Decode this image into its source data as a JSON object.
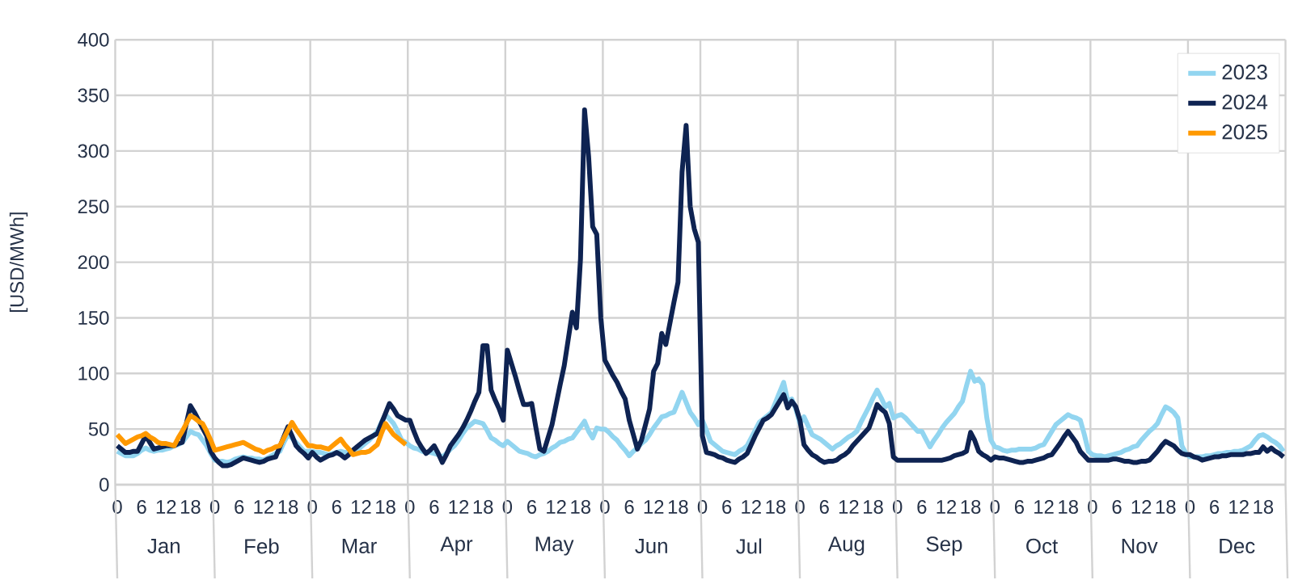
{
  "chart_data": {
    "type": "line",
    "ylabel": "[USD/MWh]",
    "ylim": [
      0,
      400
    ],
    "yticks": [
      0,
      50,
      100,
      150,
      200,
      250,
      300,
      350,
      400
    ],
    "categories": [
      "0",
      null,
      null,
      null,
      null,
      null,
      "6",
      null,
      null,
      null,
      null,
      null,
      "12",
      null,
      null,
      null,
      null,
      null,
      "18",
      null,
      null,
      null,
      null,
      null,
      "0",
      null,
      null,
      null,
      null,
      null,
      "6",
      null,
      null,
      null,
      null,
      null,
      "12",
      null,
      null,
      null,
      null,
      null,
      "18",
      null,
      null,
      null,
      null,
      null,
      "0",
      null,
      null,
      null,
      null,
      null,
      "6",
      null,
      null,
      null,
      null,
      null,
      "12",
      null,
      null,
      null,
      null,
      null,
      "18",
      null,
      null,
      null,
      null,
      null,
      "0",
      null,
      null,
      null,
      null,
      null,
      "6",
      null,
      null,
      null,
      null,
      null,
      "12",
      null,
      null,
      null,
      null,
      null,
      "18",
      null,
      null,
      null,
      null,
      null,
      "0",
      null,
      null,
      null,
      null,
      null,
      "6",
      null,
      null,
      null,
      null,
      null,
      "12",
      null,
      null,
      null,
      null,
      null,
      "18",
      null,
      null,
      null,
      null,
      null,
      "0",
      null,
      null,
      null,
      null,
      null,
      "6",
      null,
      null,
      null,
      null,
      null,
      "12",
      null,
      null,
      null,
      null,
      null,
      "18",
      null,
      null,
      null,
      null,
      null,
      "0",
      null,
      null,
      null,
      null,
      null,
      "6",
      null,
      null,
      null,
      null,
      null,
      "12",
      null,
      null,
      null,
      null,
      null,
      "18",
      null,
      null,
      null,
      null,
      null,
      "0",
      null,
      null,
      null,
      null,
      null,
      "6",
      null,
      null,
      null,
      null,
      null,
      "12",
      null,
      null,
      null,
      null,
      null,
      "18",
      null,
      null,
      null,
      null,
      null,
      "0",
      null,
      null,
      null,
      null,
      null,
      "6",
      null,
      null,
      null,
      null,
      null,
      "12",
      null,
      null,
      null,
      null,
      null,
      "18",
      null,
      null,
      null,
      null,
      null,
      "0",
      null,
      null,
      null,
      null,
      null,
      "6",
      null,
      null,
      null,
      null,
      null,
      "12",
      null,
      null,
      null,
      null,
      null,
      "18",
      null,
      null,
      null,
      null,
      null,
      "0",
      null,
      null,
      null,
      null,
      null,
      "6",
      null,
      null,
      null,
      null,
      null,
      "12",
      null,
      null,
      null,
      null,
      null,
      "18",
      null,
      null,
      null,
      null,
      null,
      "0",
      null,
      null,
      null,
      null,
      null,
      "6",
      null,
      null,
      null,
      null,
      null,
      "12",
      null,
      null,
      null,
      null,
      null,
      "18",
      null,
      null,
      null,
      null,
      null
    ],
    "annotations": [
      "Jan",
      "Feb",
      "Mar",
      "Apr",
      "May",
      "Jun",
      "Jul",
      "Aug",
      "Sep",
      "Oct",
      "Nov",
      "Dec"
    ],
    "grid": true,
    "legend": "top right",
    "marker": "none",
    "line_style": "solid",
    "series": [
      {
        "name": "2023",
        "color": "#92d5f0",
        "values": [
          30,
          28,
          26,
          26,
          26,
          28,
          31,
          33,
          31,
          30,
          31,
          31,
          32,
          33,
          35,
          36,
          38,
          43,
          48,
          46,
          45,
          40,
          35,
          28,
          22,
          21,
          21,
          20,
          21,
          23,
          24,
          25,
          24,
          24,
          23,
          23,
          22,
          24,
          26,
          28,
          30,
          38,
          45,
          42,
          38,
          34,
          30,
          30,
          30,
          29,
          29,
          28,
          27,
          28,
          29,
          30,
          29,
          29,
          28,
          31,
          34,
          37,
          40,
          44,
          48,
          56,
          63,
          59,
          55,
          48,
          40,
          38,
          35,
          33,
          32,
          30,
          29,
          29,
          28,
          27,
          25,
          28,
          32,
          35,
          40,
          46,
          51,
          54,
          57,
          56,
          55,
          49,
          42,
          40,
          37,
          35,
          39,
          36,
          33,
          30,
          29,
          28,
          26,
          25,
          27,
          28,
          30,
          33,
          35,
          38,
          39,
          41,
          42,
          47,
          52,
          57,
          48,
          42,
          51,
          50,
          50,
          47,
          43,
          40,
          35,
          31,
          26,
          30,
          33,
          37,
          40,
          45,
          51,
          56,
          61,
          62,
          64,
          65,
          74,
          83,
          74,
          65,
          60,
          54,
          58,
          49,
          39,
          36,
          33,
          30,
          29,
          28,
          27,
          30,
          32,
          35,
          42,
          49,
          56,
          59,
          62,
          65,
          74,
          83,
          92,
          75,
          77,
          68,
          55,
          61,
          53,
          45,
          43,
          41,
          38,
          35,
          32,
          35,
          37,
          40,
          43,
          45,
          48,
          56,
          63,
          70,
          78,
          85,
          78,
          70,
          73,
          60,
          62,
          63,
          60,
          56,
          52,
          48,
          48,
          41,
          34,
          40,
          45,
          51,
          56,
          60,
          64,
          70,
          75,
          89,
          102,
          93,
          95,
          90,
          60,
          40,
          34,
          33,
          31,
          30,
          31,
          31,
          32,
          32,
          32,
          32,
          33,
          35,
          36,
          42,
          48,
          54,
          57,
          60,
          63,
          61,
          60,
          58,
          45,
          30,
          27,
          26,
          26,
          25,
          26,
          27,
          28,
          29,
          31,
          32,
          34,
          35,
          40,
          44,
          48,
          51,
          55,
          63,
          70,
          68,
          65,
          60,
          35,
          28,
          25,
          25,
          25,
          25,
          26,
          26,
          27,
          28,
          28,
          29,
          29,
          30,
          30,
          31,
          33,
          35,
          40,
          44,
          45,
          43,
          40,
          38,
          35,
          30
        ]
      },
      {
        "name": "2024",
        "color": "#0e2352",
        "values": [
          35,
          32,
          29,
          29,
          30,
          30,
          37,
          44,
          38,
          32,
          33,
          34,
          35,
          35,
          35,
          37,
          38,
          55,
          71,
          65,
          58,
          51,
          44,
          30,
          24,
          20,
          17,
          17,
          18,
          20,
          22,
          24,
          23,
          22,
          21,
          20,
          21,
          23,
          24,
          25,
          34,
          43,
          52,
          44,
          35,
          31,
          28,
          24,
          29,
          25,
          22,
          24,
          26,
          27,
          29,
          27,
          24,
          27,
          31,
          34,
          37,
          40,
          42,
          44,
          46,
          55,
          64,
          73,
          68,
          62,
          60,
          58,
          58,
          48,
          39,
          33,
          28,
          31,
          35,
          28,
          20,
          27,
          35,
          40,
          45,
          51,
          58,
          66,
          75,
          83,
          125,
          125,
          85,
          76,
          68,
          58,
          121,
          109,
          97,
          84,
          72,
          72,
          73,
          52,
          32,
          30,
          42,
          54,
          72,
          90,
          107,
          131,
          155,
          141,
          203,
          337,
          295,
          232,
          225,
          150,
          112,
          105,
          98,
          92,
          84,
          77,
          58,
          45,
          32,
          40,
          54,
          68,
          102,
          109,
          136,
          126,
          145,
          164,
          182,
          281,
          323,
          250,
          230,
          218,
          44,
          29,
          28,
          27,
          25,
          24,
          22,
          21,
          20,
          23,
          25,
          28,
          36,
          44,
          51,
          58,
          60,
          63,
          69,
          75,
          81,
          69,
          75,
          70,
          58,
          36,
          31,
          27,
          25,
          22,
          20,
          21,
          21,
          22,
          25,
          27,
          30,
          35,
          39,
          43,
          47,
          51,
          61,
          72,
          68,
          65,
          55,
          25,
          22,
          22,
          22,
          22,
          22,
          22,
          22,
          22,
          22,
          22,
          22,
          22,
          23,
          24,
          26,
          27,
          28,
          30,
          47,
          40,
          30,
          27,
          25,
          22,
          25,
          24,
          24,
          23,
          22,
          21,
          20,
          20,
          21,
          21,
          22,
          23,
          24,
          26,
          27,
          32,
          37,
          43,
          48,
          43,
          38,
          30,
          26,
          22,
          22,
          22,
          22,
          22,
          22,
          23,
          23,
          22,
          21,
          21,
          20,
          20,
          21,
          21,
          22,
          26,
          30,
          35,
          39,
          37,
          35,
          31,
          28,
          27,
          27,
          25,
          24,
          22,
          23,
          24,
          25,
          25,
          26,
          26,
          27,
          27,
          27,
          27,
          28,
          28,
          29,
          29,
          34,
          30,
          33,
          30,
          28,
          25
        ]
      },
      {
        "name": "2025",
        "color": "#ff9900",
        "values": [
          45,
          41,
          37,
          39,
          41,
          43,
          44,
          46,
          43,
          41,
          38,
          37,
          37,
          36,
          35,
          42,
          48,
          55,
          62,
          60,
          57,
          55,
          48,
          40,
          31,
          32,
          33,
          34,
          35,
          36,
          37,
          38,
          36,
          34,
          32,
          31,
          29,
          31,
          32,
          34,
          35,
          42,
          49,
          56,
          50,
          45,
          40,
          35,
          35,
          34,
          34,
          33,
          32,
          35,
          38,
          41,
          36,
          32,
          27,
          28,
          29,
          29,
          30,
          33,
          36,
          46,
          55,
          50,
          45,
          42,
          39,
          36,
          null,
          null,
          null,
          null,
          null,
          null,
          null,
          null,
          null,
          null,
          null,
          null,
          null,
          null,
          null,
          null,
          null,
          null,
          null,
          null,
          null,
          null,
          null,
          null,
          null,
          null,
          null,
          null,
          null,
          null,
          null,
          null,
          null,
          null,
          null,
          null,
          null,
          null,
          null,
          null,
          null,
          null,
          null,
          null,
          null,
          null,
          null,
          null,
          null,
          null,
          null,
          null,
          null,
          null,
          null,
          null,
          null,
          null,
          null,
          null,
          null,
          null,
          null,
          null,
          null,
          null,
          null,
          null,
          null,
          null,
          null,
          null,
          null,
          null,
          null,
          null,
          null,
          null,
          null,
          null,
          null,
          null,
          null,
          null,
          null,
          null,
          null,
          null,
          null,
          null,
          null,
          null,
          null,
          null,
          null,
          null,
          null,
          null,
          null,
          null,
          null,
          null,
          null,
          null,
          null,
          null,
          null,
          null,
          null,
          null,
          null,
          null,
          null,
          null,
          null,
          null,
          null,
          null,
          null,
          null,
          null,
          null,
          null,
          null,
          null,
          null,
          null,
          null,
          null,
          null,
          null,
          null,
          null,
          null,
          null,
          null,
          null,
          null,
          null,
          null,
          null,
          null,
          null,
          null,
          null,
          null,
          null,
          null,
          null,
          null,
          null,
          null,
          null,
          null,
          null,
          null,
          null,
          null,
          null,
          null,
          null,
          null,
          null,
          null,
          null,
          null,
          null,
          null,
          null,
          null,
          null,
          null,
          null,
          null,
          null,
          null,
          null,
          null,
          null,
          null,
          null,
          null,
          null,
          null,
          null,
          null,
          null,
          null,
          null,
          null,
          null,
          null,
          null,
          null,
          null,
          null,
          null,
          null,
          null,
          null,
          null,
          null,
          null,
          null,
          null,
          null,
          null,
          null,
          null,
          null,
          null,
          null,
          null,
          null,
          null,
          null
        ]
      }
    ]
  }
}
